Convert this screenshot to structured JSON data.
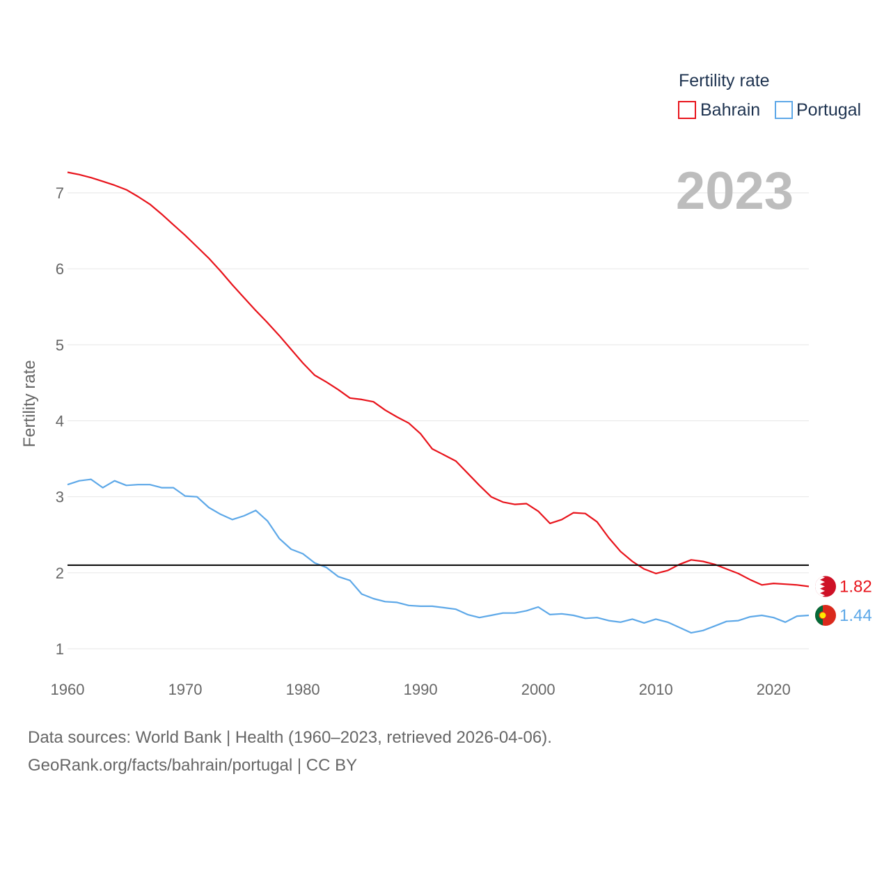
{
  "chart_data": {
    "type": "line",
    "title": "Fertility rate",
    "ylabel": "Fertility rate",
    "xlabel": "",
    "year_label": "2023",
    "xlim": [
      1960,
      2023
    ],
    "ylim": [
      0.8,
      7.5
    ],
    "x_ticks": [
      1960,
      1970,
      1980,
      1990,
      2000,
      2010,
      2020
    ],
    "y_ticks": [
      1,
      2,
      3,
      4,
      5,
      6,
      7
    ],
    "reference_line": 2.1,
    "legend_position": "top-right",
    "x": [
      1960,
      1961,
      1962,
      1963,
      1964,
      1965,
      1966,
      1967,
      1968,
      1969,
      1970,
      1971,
      1972,
      1973,
      1974,
      1975,
      1976,
      1977,
      1978,
      1979,
      1980,
      1981,
      1982,
      1983,
      1984,
      1985,
      1986,
      1987,
      1988,
      1989,
      1990,
      1991,
      1992,
      1993,
      1994,
      1995,
      1996,
      1997,
      1998,
      1999,
      2000,
      2001,
      2002,
      2003,
      2004,
      2005,
      2006,
      2007,
      2008,
      2009,
      2010,
      2011,
      2012,
      2013,
      2014,
      2015,
      2016,
      2017,
      2018,
      2019,
      2020,
      2021,
      2022,
      2023
    ],
    "series": [
      {
        "name": "Bahrain",
        "color": "#e8131b",
        "end_label": "1.82",
        "values": [
          7.27,
          7.24,
          7.2,
          7.15,
          7.1,
          7.04,
          6.95,
          6.85,
          6.72,
          6.58,
          6.44,
          6.29,
          6.14,
          5.97,
          5.79,
          5.62,
          5.45,
          5.29,
          5.12,
          4.94,
          4.76,
          4.6,
          4.51,
          4.41,
          4.3,
          4.28,
          4.25,
          4.14,
          4.05,
          3.97,
          3.83,
          3.63,
          3.55,
          3.47,
          3.31,
          3.15,
          3.0,
          2.93,
          2.9,
          2.91,
          2.81,
          2.65,
          2.7,
          2.79,
          2.78,
          2.67,
          2.46,
          2.28,
          2.15,
          2.05,
          1.99,
          2.03,
          2.11,
          2.17,
          2.15,
          2.11,
          2.05,
          1.99,
          1.91,
          1.84,
          1.86,
          1.85,
          1.84,
          1.82
        ]
      },
      {
        "name": "Portugal",
        "color": "#5da8e8",
        "end_label": "1.44",
        "values": [
          3.16,
          3.21,
          3.23,
          3.12,
          3.21,
          3.15,
          3.16,
          3.16,
          3.12,
          3.12,
          3.01,
          3.0,
          2.86,
          2.77,
          2.7,
          2.75,
          2.82,
          2.68,
          2.45,
          2.31,
          2.25,
          2.13,
          2.07,
          1.95,
          1.9,
          1.72,
          1.66,
          1.62,
          1.61,
          1.57,
          1.56,
          1.56,
          1.54,
          1.52,
          1.45,
          1.41,
          1.44,
          1.47,
          1.47,
          1.5,
          1.55,
          1.45,
          1.46,
          1.44,
          1.4,
          1.41,
          1.37,
          1.35,
          1.39,
          1.34,
          1.39,
          1.35,
          1.28,
          1.21,
          1.24,
          1.3,
          1.36,
          1.37,
          1.42,
          1.44,
          1.41,
          1.35,
          1.43,
          1.44
        ]
      }
    ]
  },
  "footer": {
    "source_line": "Data sources: World Bank | Health (1960–2023, retrieved 2026-04-06).",
    "credit_line": "GeoRank.org/facts/bahrain/portugal | CC BY"
  }
}
